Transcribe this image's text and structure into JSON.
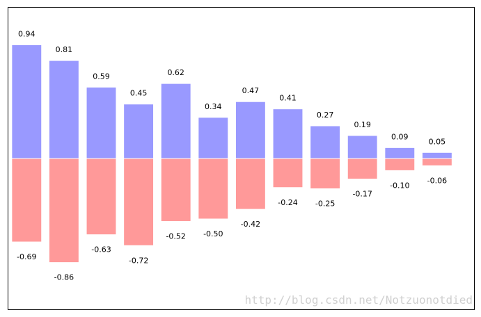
{
  "chart_data": {
    "type": "bar",
    "x": [
      0,
      1,
      2,
      3,
      4,
      5,
      6,
      7,
      8,
      9,
      10,
      11
    ],
    "series": [
      {
        "color": "#9999ff",
        "values": [
          0.94,
          0.81,
          0.59,
          0.45,
          0.62,
          0.34,
          0.47,
          0.41,
          0.27,
          0.19,
          0.09,
          0.05
        ]
      },
      {
        "color": "#ff9999",
        "values": [
          -0.69,
          -0.86,
          -0.63,
          -0.72,
          -0.52,
          -0.5,
          -0.42,
          -0.24,
          -0.25,
          -0.17,
          -0.1,
          -0.06
        ],
        "value_labels": [
          "-0.69",
          "-0.86",
          "-0.63",
          "-0.72",
          "-0.52",
          "-0.50",
          "-0.42",
          "-0.24",
          "-0.25",
          "-0.17",
          "-0.10",
          "-0.06"
        ]
      }
    ],
    "xlim": [
      -0.5,
      12
    ],
    "ylim": [
      -1.25,
      1.25
    ],
    "bar_width": 0.8,
    "annotation": "http://blog.csdn.net/Notzuonotdied"
  }
}
